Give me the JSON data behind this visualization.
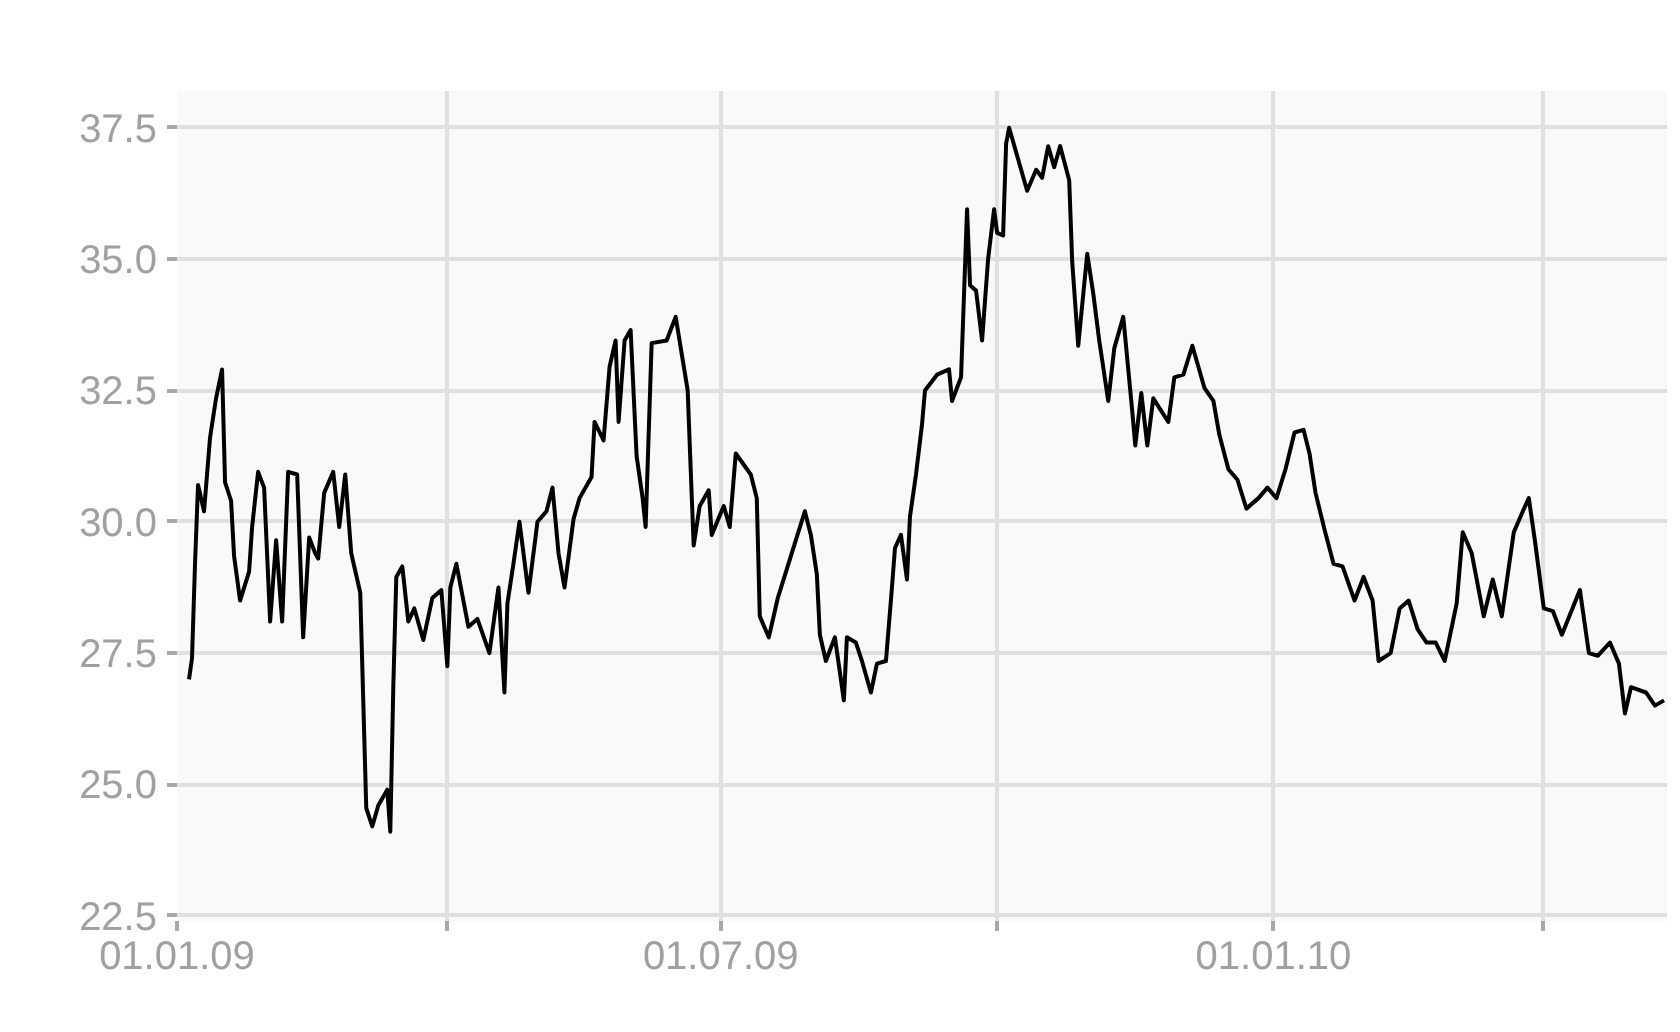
{
  "chart_data": {
    "type": "line",
    "x": [
      "2009-01-05",
      "2009-01-06",
      "2009-01-07",
      "2009-01-08",
      "2009-01-10",
      "2009-01-12",
      "2009-01-14",
      "2009-01-16",
      "2009-01-17",
      "2009-01-19",
      "2009-01-20",
      "2009-01-22",
      "2009-01-25",
      "2009-01-26",
      "2009-01-28",
      "2009-01-30",
      "2009-02-01",
      "2009-02-03",
      "2009-02-05",
      "2009-02-07",
      "2009-02-10",
      "2009-02-12",
      "2009-02-14",
      "2009-02-16",
      "2009-02-17",
      "2009-02-19",
      "2009-02-22",
      "2009-02-24",
      "2009-02-26",
      "2009-02-28",
      "2009-03-03",
      "2009-03-05",
      "2009-03-07",
      "2009-03-09",
      "2009-03-12",
      "2009-03-13",
      "2009-03-14",
      "2009-03-15",
      "2009-03-17",
      "2009-03-19",
      "2009-03-21",
      "2009-03-24",
      "2009-03-27",
      "2009-03-30",
      "2009-04-01",
      "2009-04-02",
      "2009-04-04",
      "2009-04-08",
      "2009-04-11",
      "2009-04-15",
      "2009-04-18",
      "2009-04-20",
      "2009-04-21",
      "2009-04-23",
      "2009-04-25",
      "2009-04-28",
      "2009-05-01",
      "2009-05-04",
      "2009-05-06",
      "2009-05-08",
      "2009-05-10",
      "2009-05-13",
      "2009-05-15",
      "2009-05-19",
      "2009-05-20",
      "2009-05-23",
      "2009-05-25",
      "2009-05-27",
      "2009-05-28",
      "2009-05-30",
      "2009-06-01",
      "2009-06-03",
      "2009-06-05",
      "2009-06-06",
      "2009-06-08",
      "2009-06-13",
      "2009-06-16",
      "2009-06-20",
      "2009-06-21",
      "2009-06-22",
      "2009-06-24",
      "2009-06-27",
      "2009-06-28",
      "2009-07-02",
      "2009-07-04",
      "2009-07-06",
      "2009-07-11",
      "2009-07-13",
      "2009-07-14",
      "2009-07-17",
      "2009-07-20",
      "2009-07-23",
      "2009-07-26",
      "2009-07-29",
      "2009-07-31",
      "2009-08-02",
      "2009-08-03",
      "2009-08-05",
      "2009-08-08",
      "2009-08-11",
      "2009-08-12",
      "2009-08-15",
      "2009-08-17",
      "2009-08-20",
      "2009-08-22",
      "2009-08-25",
      "2009-08-27",
      "2009-08-28",
      "2009-08-30",
      "2009-09-01",
      "2009-09-02",
      "2009-09-04",
      "2009-09-06",
      "2009-09-07",
      "2009-09-11",
      "2009-09-15",
      "2009-09-16",
      "2009-09-19",
      "2009-09-20",
      "2009-09-21",
      "2009-09-22",
      "2009-09-24",
      "2009-09-26",
      "2009-09-28",
      "2009-09-30",
      "2009-10-01",
      "2009-10-03",
      "2009-10-04",
      "2009-10-05",
      "2009-10-08",
      "2009-10-11",
      "2009-10-14",
      "2009-10-16",
      "2009-10-18",
      "2009-10-20",
      "2009-10-22",
      "2009-10-25",
      "2009-10-26",
      "2009-10-28",
      "2009-10-31",
      "2009-11-02",
      "2009-11-04",
      "2009-11-07",
      "2009-11-09",
      "2009-11-12",
      "2009-11-15",
      "2009-11-16",
      "2009-11-18",
      "2009-11-20",
      "2009-11-22",
      "2009-11-27",
      "2009-11-29",
      "2009-12-02",
      "2009-12-05",
      "2009-12-09",
      "2009-12-12",
      "2009-12-14",
      "2009-12-17",
      "2009-12-20",
      "2009-12-23",
      "2009-12-27",
      "2009-12-30",
      "2010-01-02",
      "2010-01-05",
      "2010-01-08",
      "2010-01-11",
      "2010-01-13",
      "2010-01-15",
      "2010-01-18",
      "2010-01-21",
      "2010-01-24",
      "2010-01-28",
      "2010-01-31",
      "2010-02-03",
      "2010-02-05",
      "2010-02-09",
      "2010-02-12",
      "2010-02-15",
      "2010-02-18",
      "2010-02-21",
      "2010-02-24",
      "2010-02-27",
      "2010-03-03",
      "2010-03-05",
      "2010-03-08",
      "2010-03-12",
      "2010-03-15",
      "2010-03-18",
      "2010-03-22",
      "2010-03-25",
      "2010-03-27",
      "2010-03-29",
      "2010-04-01",
      "2010-04-04",
      "2010-04-07",
      "2010-04-13",
      "2010-04-16",
      "2010-04-19",
      "2010-04-23",
      "2010-04-26",
      "2010-04-28",
      "2010-04-30",
      "2010-05-05",
      "2010-05-08",
      "2010-05-11"
    ],
    "series": [
      {
        "color": "#000000",
        "values": [
          27.0,
          27.4,
          29.2,
          30.7,
          30.2,
          31.6,
          32.35,
          32.9,
          30.75,
          30.4,
          29.35,
          28.5,
          29.05,
          29.9,
          30.95,
          30.65,
          28.1,
          29.65,
          28.1,
          30.95,
          30.9,
          27.8,
          29.7,
          29.4,
          29.3,
          30.55,
          30.95,
          29.9,
          30.9,
          29.4,
          28.65,
          24.55,
          24.2,
          24.6,
          24.9,
          24.1,
          26.85,
          28.95,
          29.15,
          28.1,
          28.35,
          27.75,
          28.55,
          28.7,
          27.25,
          28.75,
          29.2,
          28.0,
          28.15,
          27.5,
          28.75,
          26.75,
          28.45,
          29.2,
          30.0,
          28.65,
          30.0,
          30.2,
          30.65,
          29.4,
          28.75,
          30.05,
          30.45,
          30.85,
          31.9,
          31.55,
          32.95,
          33.45,
          31.9,
          33.45,
          33.65,
          31.25,
          30.45,
          29.9,
          33.4,
          33.45,
          33.9,
          32.5,
          31.0,
          29.55,
          30.3,
          30.6,
          29.75,
          30.3,
          29.9,
          31.3,
          30.9,
          30.45,
          28.2,
          27.8,
          28.55,
          29.1,
          29.65,
          30.2,
          29.75,
          29.0,
          27.85,
          27.35,
          27.8,
          26.6,
          27.8,
          27.7,
          27.35,
          26.75,
          27.3,
          27.35,
          28.75,
          29.5,
          29.75,
          28.9,
          30.1,
          30.9,
          31.85,
          32.5,
          32.8,
          32.9,
          32.3,
          32.75,
          34.35,
          35.95,
          34.5,
          34.4,
          33.45,
          35.0,
          35.95,
          35.5,
          35.45,
          37.2,
          37.5,
          36.9,
          36.3,
          36.7,
          36.55,
          37.15,
          36.75,
          37.15,
          36.5,
          34.95,
          33.35,
          35.1,
          34.35,
          33.45,
          32.3,
          33.3,
          33.9,
          32.1,
          31.45,
          32.45,
          31.45,
          32.35,
          31.9,
          32.75,
          32.8,
          33.35,
          32.55,
          32.3,
          31.65,
          31.0,
          30.8,
          30.25,
          30.45,
          30.65,
          30.45,
          31.0,
          31.7,
          31.75,
          31.3,
          30.55,
          29.85,
          29.2,
          29.15,
          28.5,
          28.95,
          28.5,
          27.35,
          27.5,
          28.35,
          28.5,
          27.95,
          27.7,
          27.7,
          27.35,
          28.45,
          29.8,
          29.4,
          28.2,
          28.9,
          28.2,
          29.8,
          30.2,
          30.45,
          29.65,
          28.35,
          28.3,
          27.85,
          28.7,
          27.5,
          27.45,
          27.7,
          27.3,
          26.35,
          26.85,
          26.75,
          26.5,
          26.6
        ]
      }
    ],
    "xlim": [
      "2009-01-01",
      "2010-05-12"
    ],
    "xticks": [
      {
        "value": "2009-01-01",
        "label": "01.01.09"
      },
      {
        "value": "2009-04-01",
        "label": null
      },
      {
        "value": "2009-07-01",
        "label": "01.07.09"
      },
      {
        "value": "2009-10-01",
        "label": null
      },
      {
        "value": "2010-01-01",
        "label": "01.01.10"
      },
      {
        "value": "2010-04-01",
        "label": null
      }
    ],
    "ylim": [
      22.4,
      38.2
    ],
    "yticks": [
      22.5,
      {
        "value": 25,
        "label": "25.0"
      },
      27.5,
      {
        "value": 30,
        "label": "30.0"
      },
      32.5,
      {
        "value": 35,
        "label": "35.0"
      },
      37.5
    ],
    "grid": true,
    "line_style": "solid"
  }
}
